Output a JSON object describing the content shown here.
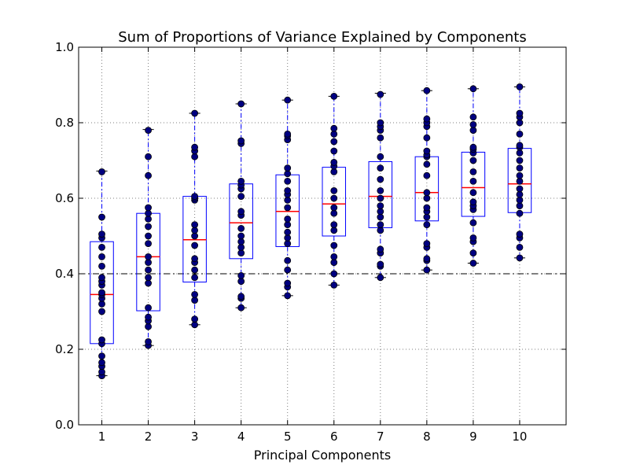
{
  "chart_data": {
    "type": "box",
    "title": "Sum of Proportions of Variance Explained by Components",
    "xlabel": "Principal Components",
    "ylabel": "",
    "ylim": [
      0.0,
      1.0
    ],
    "yticks": [
      "0.0",
      "0.2",
      "0.4",
      "0.6",
      "0.8",
      "1.0"
    ],
    "categories": [
      "1",
      "2",
      "3",
      "4",
      "5",
      "6",
      "7",
      "8",
      "9",
      "10"
    ],
    "grid": true,
    "reference_line": {
      "y": 0.4,
      "style": "dash-dot",
      "color": "#000000"
    },
    "colors": {
      "box": "#0000ff",
      "whisker": "#0000ff",
      "median": "#ff0000",
      "points": "#000080",
      "reference_line": "#000000",
      "grid": "#7f7f7f"
    },
    "boxes": [
      {
        "category": "1",
        "whislo": 0.13,
        "q1": 0.215,
        "median": 0.345,
        "q3": 0.485,
        "whishi": 0.672
      },
      {
        "category": "2",
        "whislo": 0.21,
        "q1": 0.302,
        "median": 0.445,
        "q3": 0.56,
        "whishi": 0.782
      },
      {
        "category": "3",
        "whislo": 0.265,
        "q1": 0.378,
        "median": 0.49,
        "q3": 0.605,
        "whishi": 0.825
      },
      {
        "category": "4",
        "whislo": 0.31,
        "q1": 0.44,
        "median": 0.535,
        "q3": 0.638,
        "whishi": 0.85
      },
      {
        "category": "5",
        "whislo": 0.342,
        "q1": 0.472,
        "median": 0.565,
        "q3": 0.662,
        "whishi": 0.86
      },
      {
        "category": "6",
        "whislo": 0.37,
        "q1": 0.5,
        "median": 0.585,
        "q3": 0.682,
        "whishi": 0.87
      },
      {
        "category": "7",
        "whislo": 0.39,
        "q1": 0.522,
        "median": 0.605,
        "q3": 0.697,
        "whishi": 0.878
      },
      {
        "category": "8",
        "whislo": 0.41,
        "q1": 0.54,
        "median": 0.615,
        "q3": 0.71,
        "whishi": 0.885
      },
      {
        "category": "9",
        "whislo": 0.428,
        "q1": 0.552,
        "median": 0.628,
        "q3": 0.722,
        "whishi": 0.89
      },
      {
        "category": "10",
        "whislo": 0.442,
        "q1": 0.562,
        "median": 0.638,
        "q3": 0.732,
        "whishi": 0.895
      }
    ],
    "points": [
      [
        0.13,
        0.14,
        0.155,
        0.165,
        0.182,
        0.215,
        0.225,
        0.3,
        0.32,
        0.335,
        0.345,
        0.35,
        0.37,
        0.38,
        0.39,
        0.42,
        0.445,
        0.47,
        0.495,
        0.505,
        0.55,
        0.67
      ],
      [
        0.21,
        0.22,
        0.26,
        0.275,
        0.285,
        0.31,
        0.375,
        0.39,
        0.41,
        0.43,
        0.445,
        0.48,
        0.5,
        0.525,
        0.545,
        0.56,
        0.575,
        0.66,
        0.71,
        0.78
      ],
      [
        0.265,
        0.28,
        0.33,
        0.345,
        0.39,
        0.41,
        0.43,
        0.44,
        0.475,
        0.5,
        0.515,
        0.53,
        0.595,
        0.6,
        0.605,
        0.71,
        0.725,
        0.735,
        0.825
      ],
      [
        0.31,
        0.335,
        0.34,
        0.38,
        0.395,
        0.455,
        0.47,
        0.485,
        0.5,
        0.52,
        0.555,
        0.565,
        0.605,
        0.625,
        0.635,
        0.645,
        0.745,
        0.752,
        0.85
      ],
      [
        0.342,
        0.365,
        0.375,
        0.41,
        0.435,
        0.48,
        0.495,
        0.51,
        0.53,
        0.545,
        0.575,
        0.595,
        0.61,
        0.62,
        0.645,
        0.665,
        0.68,
        0.755,
        0.765,
        0.77,
        0.86
      ],
      [
        0.37,
        0.4,
        0.43,
        0.445,
        0.475,
        0.515,
        0.53,
        0.56,
        0.575,
        0.6,
        0.62,
        0.67,
        0.685,
        0.695,
        0.725,
        0.75,
        0.77,
        0.785,
        0.87
      ],
      [
        0.39,
        0.42,
        0.425,
        0.455,
        0.465,
        0.515,
        0.53,
        0.55,
        0.565,
        0.58,
        0.6,
        0.62,
        0.65,
        0.68,
        0.71,
        0.76,
        0.78,
        0.79,
        0.8,
        0.875
      ],
      [
        0.41,
        0.435,
        0.44,
        0.47,
        0.48,
        0.53,
        0.55,
        0.565,
        0.575,
        0.6,
        0.615,
        0.66,
        0.69,
        0.71,
        0.715,
        0.725,
        0.76,
        0.79,
        0.8,
        0.81,
        0.885
      ],
      [
        0.428,
        0.455,
        0.485,
        0.495,
        0.535,
        0.57,
        0.58,
        0.59,
        0.615,
        0.645,
        0.67,
        0.7,
        0.72,
        0.73,
        0.735,
        0.78,
        0.795,
        0.815,
        0.89
      ],
      [
        0.442,
        0.47,
        0.495,
        0.505,
        0.56,
        0.58,
        0.595,
        0.61,
        0.625,
        0.645,
        0.66,
        0.68,
        0.7,
        0.72,
        0.735,
        0.74,
        0.77,
        0.8,
        0.815,
        0.825,
        0.895
      ]
    ]
  }
}
